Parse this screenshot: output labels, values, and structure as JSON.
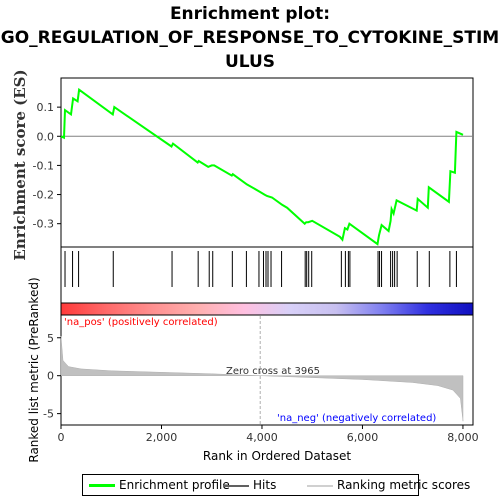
{
  "title": "Enrichment plot:\nGO_REGULATION_OF_RESPONSE_TO_CYTOKINE_STIM\nULUS",
  "chart_data": {
    "type": "line",
    "title": "Enrichment plot: GO_REGULATION_OF_RESPONSE_TO_CYTOKINE_STIMULUS",
    "xlabel": "Rank in Ordered Dataset",
    "xlim": [
      0,
      8200
    ],
    "xticks": [
      0,
      2000,
      4000,
      6000,
      8000
    ],
    "xtick_labels": [
      "0",
      "2,000",
      "4,000",
      "6,000",
      "8,000"
    ],
    "es_panel": {
      "ylabel": "Enrichment score (ES)",
      "ylim": [
        -0.38,
        0.2
      ],
      "yticks": [
        0.1,
        0.0,
        -0.1,
        -0.2,
        -0.3
      ],
      "ytick_labels": [
        "0.1",
        "0.0",
        "-0.1",
        "-0.2",
        "-0.3"
      ],
      "color": "#00ff00",
      "points": [
        [
          0,
          0.0
        ],
        [
          60,
          -0.005
        ],
        [
          80,
          0.09
        ],
        [
          200,
          0.075
        ],
        [
          240,
          0.13
        ],
        [
          330,
          0.12
        ],
        [
          360,
          0.16
        ],
        [
          1030,
          0.075
        ],
        [
          1060,
          0.1
        ],
        [
          2200,
          -0.035
        ],
        [
          2230,
          -0.025
        ],
        [
          2720,
          -0.09
        ],
        [
          2740,
          -0.085
        ],
        [
          2930,
          -0.105
        ],
        [
          3000,
          -0.1
        ],
        [
          3050,
          -0.1
        ],
        [
          3400,
          -0.135
        ],
        [
          3420,
          -0.13
        ],
        [
          3700,
          -0.165
        ],
        [
          3950,
          -0.19
        ],
        [
          4050,
          -0.2
        ],
        [
          4100,
          -0.205
        ],
        [
          4200,
          -0.21
        ],
        [
          4400,
          -0.235
        ],
        [
          4500,
          -0.245
        ],
        [
          4850,
          -0.3
        ],
        [
          4880,
          -0.295
        ],
        [
          4920,
          -0.295
        ],
        [
          5000,
          -0.29
        ],
        [
          5550,
          -0.345
        ],
        [
          5600,
          -0.355
        ],
        [
          5650,
          -0.315
        ],
        [
          5700,
          -0.32
        ],
        [
          5740,
          -0.3
        ],
        [
          6300,
          -0.37
        ],
        [
          6330,
          -0.34
        ],
        [
          6380,
          -0.305
        ],
        [
          6520,
          -0.325
        ],
        [
          6560,
          -0.29
        ],
        [
          6580,
          -0.25
        ],
        [
          6620,
          -0.265
        ],
        [
          6680,
          -0.22
        ],
        [
          7080,
          -0.255
        ],
        [
          7100,
          -0.215
        ],
        [
          7300,
          -0.245
        ],
        [
          7320,
          -0.175
        ],
        [
          7720,
          -0.225
        ],
        [
          7750,
          -0.12
        ],
        [
          7840,
          -0.125
        ],
        [
          7870,
          0.015
        ],
        [
          8000,
          0.005
        ]
      ]
    },
    "hits": [
      80,
      230,
      350,
      1040,
      2210,
      2730,
      2950,
      3020,
      3410,
      3690,
      3940,
      4030,
      4080,
      4120,
      4180,
      4390,
      4860,
      4890,
      4930,
      4990,
      5580,
      5660,
      5720,
      5750,
      6310,
      6340,
      6380,
      6560,
      6600,
      6640,
      6690,
      7090,
      7330,
      7740,
      7870
    ],
    "gradient_bar": {
      "stops": [
        "#ff3a3a",
        "#ff6a6a",
        "#ff9090",
        "#ffb0b0",
        "#ffc0e0",
        "#d8d0f8",
        "#c8c0f0",
        "#8080f0",
        "#3030e0",
        "#1010c0"
      ]
    },
    "metric_panel": {
      "ylabel": "Ranked list metric (PreRanked)",
      "ylim": [
        -6.5,
        8
      ],
      "yticks": [
        5,
        0,
        -5
      ],
      "ytick_labels": [
        "5",
        "0",
        "-5"
      ],
      "zero_cross_label": "Zero cross at 3965",
      "zero_cross": 3965,
      "pos_label": "'na_pos' (positively correlated)",
      "neg_label": "'na_neg' (negatively correlated)",
      "profile": [
        [
          0,
          5.2
        ],
        [
          40,
          2.0
        ],
        [
          150,
          1.2
        ],
        [
          400,
          0.9
        ],
        [
          1000,
          0.65
        ],
        [
          2000,
          0.45
        ],
        [
          3000,
          0.25
        ],
        [
          3965,
          0.0
        ],
        [
          5000,
          -0.25
        ],
        [
          6000,
          -0.5
        ],
        [
          7000,
          -0.9
        ],
        [
          7500,
          -1.3
        ],
        [
          7800,
          -1.9
        ],
        [
          7950,
          -3.0
        ],
        [
          8000,
          -6.0
        ]
      ]
    },
    "legend": [
      "Enrichment profile",
      "Hits",
      "Ranking metric scores"
    ]
  },
  "colors": {
    "es_line": "#00ff00",
    "hits": "#000000",
    "metric": "#c0c0c0",
    "zero_line": "#c0c0c0",
    "pos_text": "#ff0000",
    "neg_text": "#0000ff"
  }
}
